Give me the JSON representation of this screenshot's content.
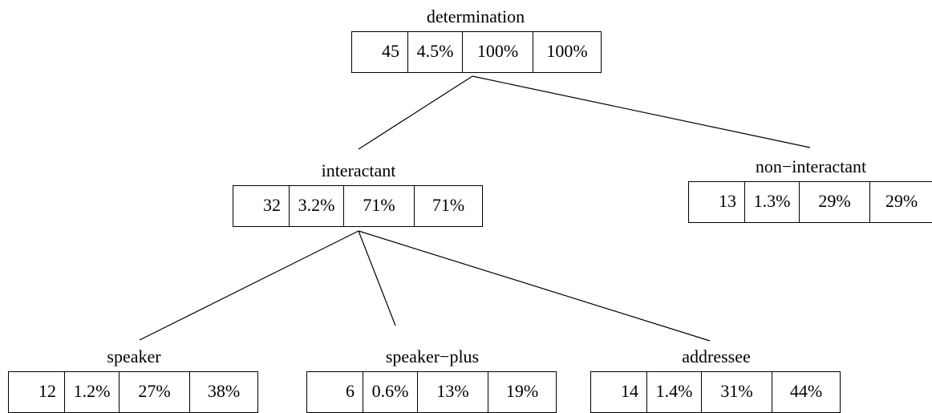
{
  "nodes": {
    "determination": {
      "label": "determination",
      "count": "45",
      "pct": "4.5%",
      "rel": "100%",
      "cum": "100%"
    },
    "interactant": {
      "label": "interactant",
      "count": "32",
      "pct": "3.2%",
      "rel": "71%",
      "cum": "71%"
    },
    "non_interactant": {
      "label": "non−interactant",
      "count": "13",
      "pct": "1.3%",
      "rel": "29%",
      "cum": "29%"
    },
    "speaker": {
      "label": "speaker",
      "count": "12",
      "pct": "1.2%",
      "rel": "27%",
      "cum": "38%"
    },
    "speaker_plus": {
      "label": "speaker−plus",
      "count": "6",
      "pct": "0.6%",
      "rel": "13%",
      "cum": "19%"
    },
    "addressee": {
      "label": "addressee",
      "count": "14",
      "pct": "1.4%",
      "rel": "31%",
      "cum": "44%"
    }
  },
  "edges": [
    {
      "from": "determination",
      "to": "interactant"
    },
    {
      "from": "determination",
      "to": "non_interactant"
    },
    {
      "from": "interactant",
      "to": "speaker"
    },
    {
      "from": "interactant",
      "to": "speaker_plus"
    },
    {
      "from": "interactant",
      "to": "addressee"
    }
  ]
}
